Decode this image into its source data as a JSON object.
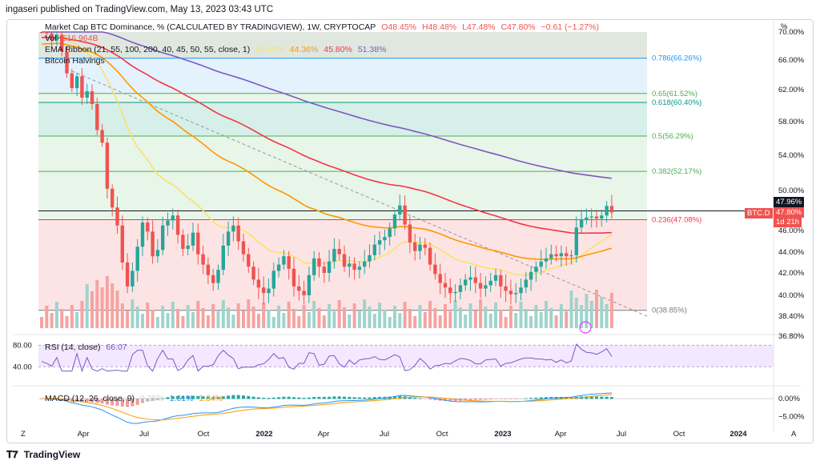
{
  "header": {
    "published": "ingaseri published on TradingView.com, May 13, 2023 03:43 UTC"
  },
  "legend": {
    "main_title": "Market Cap BTC Dominance, % (CALCULATED BY TRADINGVIEW), 1W, CRYPTOCAP",
    "ohlc": [
      "O48.45%",
      "H48.48%",
      "L47.48%",
      "C47.80%",
      "−0.61 (−1.27%)"
    ],
    "vol_label": "Vol",
    "vol_value": "516.964B",
    "ema_label": "EMA Ribbon (21, 55, 100, 200, 40, 45, 50, 55, close, 1)",
    "ema_values": [
      "45.60%",
      "44.36%",
      "45.80%",
      "51.38%"
    ],
    "halvings": "Bitcoin Halvings",
    "rsi_label": "RSI (14, close)",
    "rsi_value": "66.07",
    "macd_label": "MACD (12, 26, close, 9)",
    "macd_values": [
      "0.25%",
      "1.61%",
      "1.34%"
    ]
  },
  "price_axis": {
    "unit": "%",
    "labels": [
      "70.00%",
      "66.00%",
      "62.00%",
      "58.00%",
      "54.00%",
      "50.00%",
      "46.00%",
      "44.00%",
      "42.00%",
      "40.00%",
      "38.40%",
      "36.80%"
    ],
    "last_price_tag": "47.80%",
    "last_price_time": "1d 21h",
    "high_tag": "47.96%",
    "symbol_tag": "BTC.D"
  },
  "rsi_axis": {
    "labels": [
      "80.00",
      "40.00"
    ]
  },
  "macd_axis": {
    "labels": [
      "0.00%",
      "−5.00%"
    ]
  },
  "time_axis": {
    "labels": [
      "Apr",
      "Jul",
      "Oct",
      "2022",
      "Apr",
      "Jul",
      "Oct",
      "2023",
      "Apr",
      "Jul",
      "Oct",
      "2024"
    ],
    "left_button": "Z",
    "right_button": "A"
  },
  "fib_levels": [
    {
      "label": "0.786(66.26%)",
      "value": 66.26,
      "color": "#2196f3"
    },
    {
      "label": "0.65(61.52%)",
      "value": 61.52,
      "color": "#4caf50"
    },
    {
      "label": "0.618(60.40%)",
      "value": 60.4,
      "color": "#089981"
    },
    {
      "label": "0.5(56.29%)",
      "value": 56.29,
      "color": "#4caf50"
    },
    {
      "label": "0.382(52.17%)",
      "value": 52.17,
      "color": "#4caf50"
    },
    {
      "label": "0.236(47.08%)",
      "value": 47.08,
      "color": "#f23645"
    },
    {
      "label": "0(38.85%)",
      "value": 38.85,
      "color": "#787b86"
    }
  ],
  "colors": {
    "up": "#26a69a",
    "down": "#ef5350",
    "ema21": "#f7e36b",
    "ema55": "#ff9800",
    "ema100": "#f23645",
    "ema200": "#7e57c2",
    "rsi": "#7e57c2",
    "macd": "#2196f3",
    "signal": "#ff9800"
  },
  "chart_data": {
    "type": "candlestick",
    "title": "Market Cap BTC Dominance, % (CALCULATED BY TRADINGVIEW), 1W, CRYPTOCAP",
    "timeframe": "1W",
    "y_unit": "%",
    "ylim": [
      36.8,
      70.0
    ],
    "x_range": [
      "2021-01",
      "2024-02"
    ],
    "last": {
      "open": 48.45,
      "high": 48.48,
      "low": 47.48,
      "close": 47.8,
      "change": -0.61,
      "change_pct": -1.27
    },
    "closes_weekly": [
      70.2,
      69.8,
      68.8,
      69.6,
      67.2,
      64.2,
      62.2,
      63.8,
      61.0,
      61.8,
      60.2,
      57.0,
      55.5,
      50.2,
      48.3,
      46.5,
      43.0,
      40.8,
      42.2,
      44.5,
      46.8,
      45.9,
      43.6,
      44.2,
      46.5,
      47.0,
      47.5,
      45.6,
      44.3,
      44.6,
      45.8,
      43.8,
      42.8,
      41.8,
      41.1,
      42.3,
      44.6,
      45.9,
      46.5,
      45.0,
      43.8,
      42.6,
      41.4,
      40.7,
      40.2,
      40.6,
      42.2,
      42.8,
      43.6,
      42.4,
      40.8,
      40.4,
      40.0,
      41.8,
      43.4,
      42.6,
      42.0,
      43.1,
      44.3,
      43.8,
      42.6,
      42.9,
      42.3,
      42.6,
      43.1,
      43.7,
      44.7,
      45.1,
      45.4,
      46.2,
      47.6,
      48.5,
      46.6,
      44.9,
      44.1,
      44.7,
      44.4,
      42.8,
      41.9,
      41.1,
      40.7,
      40.2,
      40.3,
      40.9,
      41.4,
      41.6,
      41.1,
      40.6,
      40.9,
      41.3,
      41.8,
      40.8,
      40.4,
      40.1,
      40.2,
      40.7,
      41.4,
      42.1,
      42.6,
      43.1,
      43.4,
      43.8,
      43.6,
      43.9,
      43.6,
      43.7,
      46.3,
      47.1,
      47.3,
      47.4,
      47.2,
      47.5,
      48.45,
      47.8
    ],
    "ema": {
      "21": {
        "last": 45.6
      },
      "55": {
        "last": 44.36
      },
      "100": {
        "last": 45.8
      },
      "200": {
        "last": 51.38
      }
    },
    "rsi": {
      "period": 14,
      "last": 66.07,
      "levels": [
        80,
        40
      ]
    },
    "macd": {
      "fast": 12,
      "slow": 26,
      "signal": 9,
      "values": [
        0.25,
        1.61,
        1.34
      ]
    }
  }
}
